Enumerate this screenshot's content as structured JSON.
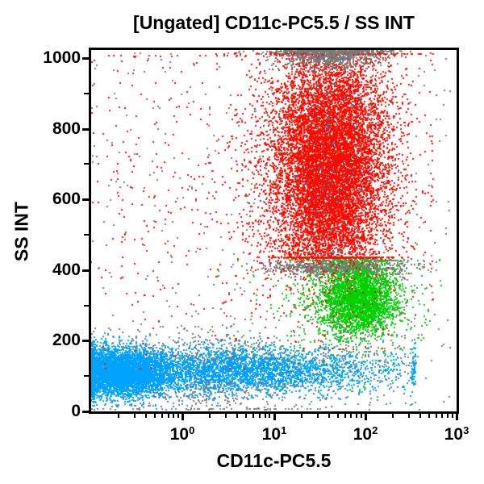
{
  "chart_data": {
    "type": "scatter",
    "subtype": "flow-cytometry-dot-plot",
    "title": "[Ungated] CD11c-PC5.5 / SS INT",
    "xlabel": "CD11c-PC5.5",
    "ylabel": "SS INT",
    "x_scale": "log",
    "x_tick_base": "10",
    "x_min_exponent": -1,
    "x_max_exponent": 3,
    "x_major_tick_exponents": [
      0,
      1,
      2,
      3
    ],
    "y_scale": "linear",
    "y_min": 0,
    "y_max": 1023,
    "y_major_ticks": [
      0,
      200,
      400,
      600,
      800,
      1000
    ],
    "y_minor_ticks": [
      100,
      300,
      500,
      700,
      900
    ],
    "grid": false,
    "background": "#ffffff",
    "frame_color": "#000000",
    "point_size": 2,
    "seed": 42,
    "colors": {
      "granulocytes_red": "#F90D00",
      "monocytes_green": "#00D400",
      "lymphocytes_blue": "#00A2FF",
      "ungated_gray": "#7B7B7B"
    },
    "populations": [
      {
        "name": "gray-background",
        "color": "#7B7B7B",
        "count": 450,
        "logx": {
          "dist": "uniform",
          "min": -1,
          "max": 2.95
        },
        "y": {
          "dist": "uniform",
          "min": 5,
          "max": 1018
        }
      },
      {
        "name": "gray-low-fringe",
        "color": "#7B7B7B",
        "count": 1400,
        "logx": {
          "dist": "normal",
          "mean": 0.35,
          "sd": 0.85,
          "min": -1,
          "max": 2.55
        },
        "y": {
          "dist": "normal",
          "mean": 112,
          "sd": 58,
          "min": 5,
          "max": 272
        }
      },
      {
        "name": "lymphocytes-band",
        "color": "#00A2FF",
        "count": 3400,
        "logx": {
          "dist": "normal",
          "mean": 0.55,
          "sd": 0.9,
          "min": -1,
          "max": 2.55
        },
        "y": {
          "dist": "normal",
          "mean": 117,
          "sd": 32,
          "min": 14,
          "max": 228
        }
      },
      {
        "name": "lymphocytes-core",
        "color": "#00A2FF",
        "count": 4200,
        "logx": {
          "dist": "normal",
          "mean": -0.72,
          "sd": 0.26,
          "min": -1,
          "max": 0.35
        },
        "y": {
          "dist": "normal",
          "mean": 111,
          "sd": 33,
          "min": 14,
          "max": 222
        }
      },
      {
        "name": "gray-band-400",
        "color": "#7B7B7B",
        "count": 850,
        "logx": {
          "dist": "normal",
          "mean": 1.7,
          "sd": 0.38,
          "min": -0.6,
          "max": 2.8
        },
        "y": {
          "dist": "normal",
          "mean": 407,
          "sd": 11,
          "min": 372,
          "max": 430
        }
      },
      {
        "name": "gray-monocyte-fringe",
        "color": "#7B7B7B",
        "count": 600,
        "logx": {
          "dist": "normal",
          "mean": 1.95,
          "sd": 0.3,
          "min": 0.5,
          "max": 2.85
        },
        "y": {
          "dist": "normal",
          "mean": 320,
          "sd": 85,
          "min": 125,
          "max": 428
        }
      },
      {
        "name": "monocytes-scatter",
        "color": "#00D400",
        "count": 250,
        "logx": {
          "dist": "normal",
          "mean": 1.75,
          "sd": 0.55,
          "min": -0.9,
          "max": 2.85
        },
        "y": {
          "dist": "normal",
          "mean": 290,
          "sd": 110,
          "min": 60,
          "max": 430
        }
      },
      {
        "name": "monocytes-core",
        "color": "#00D400",
        "count": 2600,
        "logx": {
          "dist": "normal",
          "mean": 1.92,
          "sd": 0.21,
          "min": 1.15,
          "max": 2.8
        },
        "y": {
          "dist": "normal",
          "mean": 320,
          "sd": 48,
          "min": 150,
          "max": 432
        }
      },
      {
        "name": "granulocytes-halo",
        "color": "#F90D00",
        "count": 1900,
        "logx": {
          "dist": "normal",
          "mean": 1.58,
          "sd": 0.5,
          "min": -1,
          "max": 2.75
        },
        "y": {
          "dist": "normal",
          "mean": 700,
          "sd": 215,
          "min": 175,
          "max": 1014
        }
      },
      {
        "name": "granulocytes-scatter-left",
        "color": "#F90D00",
        "count": 280,
        "logx": {
          "dist": "uniform",
          "min": -1,
          "max": 1.05
        },
        "y": {
          "dist": "normal",
          "mean": 620,
          "sd": 260,
          "min": 120,
          "max": 1008
        }
      },
      {
        "name": "granulocytes-core-upper",
        "color": "#F90D00",
        "count": 4800,
        "logx": {
          "dist": "normal",
          "mean": 1.62,
          "sd": 0.3,
          "min": 0.55,
          "max": 2.48
        },
        "y": {
          "dist": "normal",
          "mean": 790,
          "sd": 120,
          "min": 434,
          "max": 1012
        }
      },
      {
        "name": "granulocytes-core-lower",
        "color": "#F90D00",
        "count": 4800,
        "logx": {
          "dist": "normal",
          "mean": 1.62,
          "sd": 0.3,
          "min": 0.55,
          "max": 2.48
        },
        "y": {
          "dist": "normal",
          "mean": 602,
          "sd": 120,
          "min": 434,
          "max": 1012
        }
      },
      {
        "name": "gray-saturated-top",
        "color": "#7B7B7B",
        "count": 950,
        "logx": {
          "dist": "normal",
          "mean": 1.62,
          "sd": 0.3,
          "min": 0.28,
          "max": 2.85
        },
        "y": {
          "dist": "normal",
          "mean": 1012,
          "sd": 22,
          "min": 928,
          "max": 1021
        }
      },
      {
        "name": "blue-doublets-in-red",
        "color": "#00A2FF",
        "count": 120,
        "logx": {
          "dist": "normal",
          "mean": 1.6,
          "sd": 0.3,
          "min": 0.8,
          "max": 2.3
        },
        "y": {
          "dist": "normal",
          "mean": 700,
          "sd": 160,
          "min": 450,
          "max": 1000
        }
      }
    ]
  }
}
